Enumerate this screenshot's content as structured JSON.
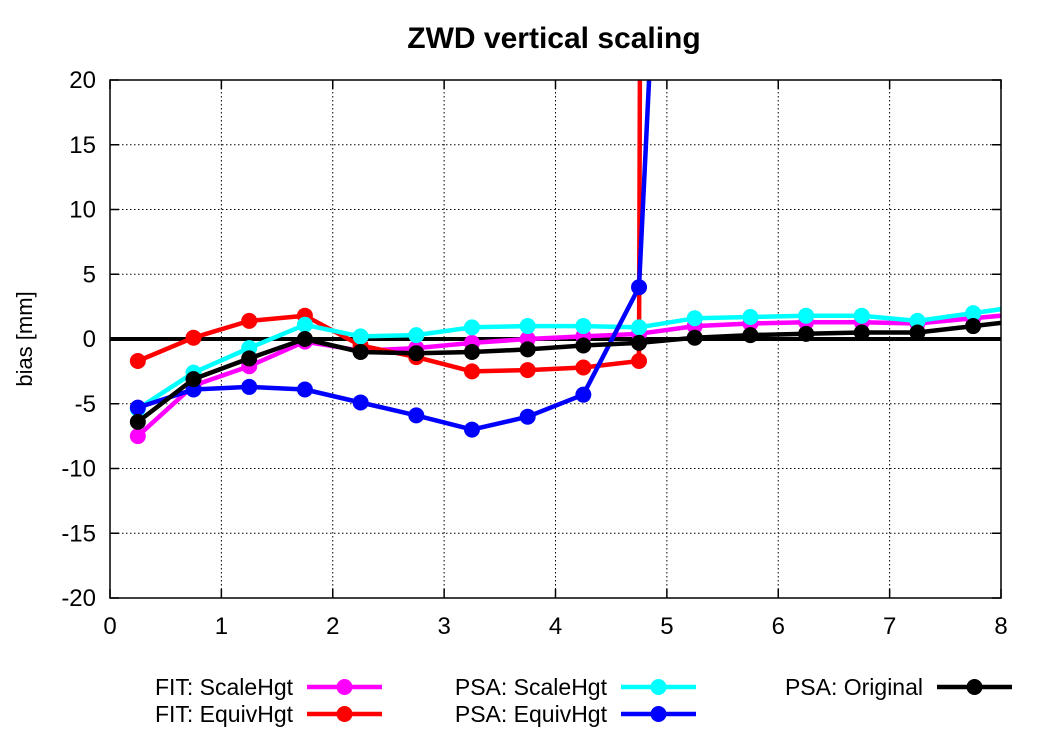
{
  "chart_data": {
    "type": "line",
    "title": "ZWD vertical scaling",
    "xlabel": "",
    "ylabel": "bias [mm]",
    "xlim": [
      0,
      8
    ],
    "ylim": [
      -20,
      20
    ],
    "xticks": [
      0,
      1,
      2,
      3,
      4,
      5,
      6,
      7,
      8
    ],
    "yticks": [
      -20,
      -15,
      -10,
      -5,
      0,
      5,
      10,
      15,
      20
    ],
    "grid": true,
    "legend_position": "bottom",
    "series": [
      {
        "name": "FIT: ScaleHgt",
        "color": "#ff00ff",
        "x": [
          0.25,
          0.75,
          1.25,
          1.75,
          2.25,
          2.75,
          3.25,
          3.75,
          4.25,
          4.75,
          5.25,
          5.75,
          6.25,
          6.75,
          7.25,
          7.75
        ],
        "y": [
          -7.5,
          -3.6,
          -2.1,
          -0.2,
          -0.9,
          -0.7,
          -0.3,
          0.0,
          0.2,
          0.4,
          1.0,
          1.2,
          1.3,
          1.3,
          1.2,
          1.6
        ]
      },
      {
        "name": "FIT: EquivHgt",
        "color": "#ff0000",
        "x": [
          0.25,
          0.75,
          1.25,
          1.75,
          2.25,
          2.75,
          3.25,
          3.75,
          4.25,
          4.75
        ],
        "y": [
          -1.7,
          0.1,
          1.4,
          1.8,
          -0.5,
          -1.4,
          -2.5,
          -2.4,
          -2.2,
          -1.7
        ],
        "spike_after_last": true
      },
      {
        "name": "PSA: ScaleHgt",
        "color": "#00ffff",
        "x": [
          0.25,
          0.75,
          1.25,
          1.75,
          2.25,
          2.75,
          3.25,
          3.75,
          4.25,
          4.75,
          5.25,
          5.75,
          6.25,
          6.75,
          7.25,
          7.75
        ],
        "y": [
          -5.4,
          -2.6,
          -0.7,
          1.1,
          0.2,
          0.3,
          0.9,
          1.0,
          1.0,
          0.9,
          1.6,
          1.7,
          1.8,
          1.8,
          1.4,
          2.0
        ]
      },
      {
        "name": "PSA: EquivHgt",
        "color": "#0000ff",
        "x": [
          0.25,
          0.75,
          1.25,
          1.75,
          2.25,
          2.75,
          3.25,
          3.75,
          4.25,
          4.75
        ],
        "y": [
          -5.3,
          -3.9,
          -3.7,
          -3.9,
          -4.9,
          -5.9,
          -7.0,
          -6.0,
          -4.3,
          4.0
        ],
        "spike_after_last": true
      },
      {
        "name": "PSA: Original",
        "color": "#000000",
        "x": [
          0.25,
          0.75,
          1.25,
          1.75,
          2.25,
          2.75,
          3.25,
          3.75,
          4.25,
          4.75,
          5.25,
          5.75,
          6.25,
          6.75,
          7.25,
          7.75
        ],
        "y": [
          -6.4,
          -3.1,
          -1.5,
          0.0,
          -1.0,
          -1.1,
          -1.0,
          -0.8,
          -0.5,
          -0.3,
          0.1,
          0.3,
          0.4,
          0.5,
          0.5,
          1.0
        ]
      }
    ]
  }
}
